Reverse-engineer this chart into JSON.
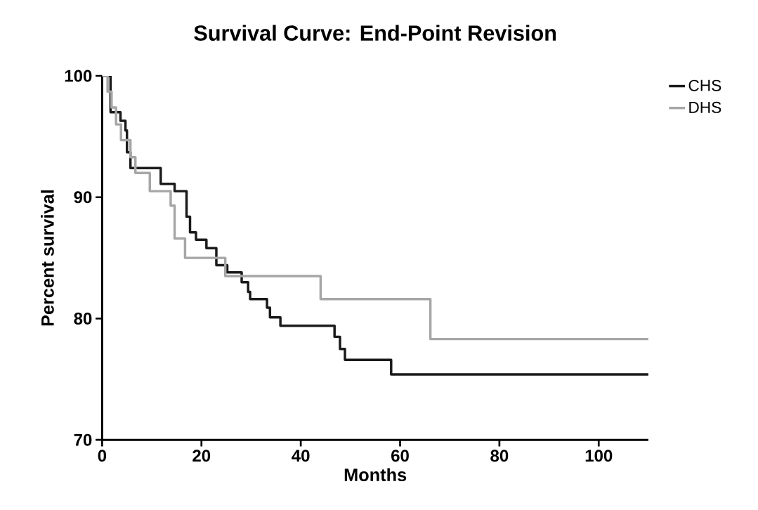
{
  "chart_data": {
    "type": "step",
    "title": "Survival Curve: End-Point Revision",
    "xlabel": "Months",
    "ylabel": "Percent survival",
    "xlim": [
      0,
      110
    ],
    "xticks": [
      0,
      20,
      40,
      60,
      80,
      100
    ],
    "ylim": [
      70,
      100
    ],
    "yticks": [
      70,
      80,
      90,
      100
    ],
    "grid": false,
    "legend": "top right",
    "marker": "none",
    "line_style": "solid",
    "series": [
      {
        "name": "CHS",
        "color": "#1a1a1a",
        "x": [
          0,
          1.7,
          3.7,
          4.7,
          5.0,
          5.7,
          11.8,
          14.6,
          17.0,
          17.7,
          18.9,
          21.0,
          23.0,
          25.2,
          28.1,
          29.4,
          29.8,
          33.2,
          33.8,
          35.9,
          46.8,
          47.9,
          48.9,
          58.2,
          110
        ],
        "values": [
          100,
          97.0,
          96.3,
          95.5,
          93.7,
          92.4,
          91.1,
          90.5,
          88.4,
          87.1,
          86.5,
          85.8,
          84.4,
          83.8,
          83.0,
          82.2,
          81.6,
          80.9,
          80.1,
          79.4,
          78.5,
          77.5,
          76.6,
          75.4,
          75.4
        ]
      },
      {
        "name": "DHS",
        "color": "#a6a6a6",
        "x": [
          0,
          1.1,
          1.9,
          2.8,
          3.8,
          5.7,
          6.7,
          9.6,
          13.8,
          14.6,
          16.7,
          24.8,
          44.0,
          66.1,
          110
        ],
        "values": [
          100,
          98.7,
          97.4,
          96.0,
          94.7,
          93.3,
          92.0,
          90.5,
          89.3,
          86.6,
          85.0,
          83.5,
          81.6,
          78.3,
          78.3
        ]
      }
    ]
  }
}
